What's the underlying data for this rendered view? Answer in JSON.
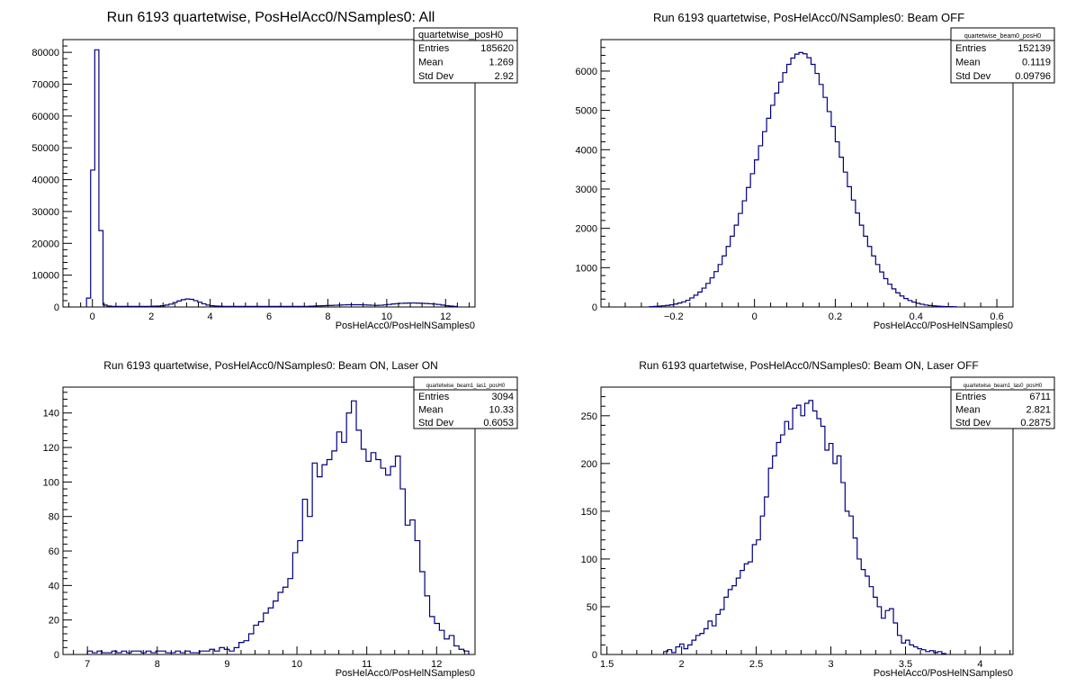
{
  "chart_data": [
    {
      "type": "histogram",
      "title": "Run 6193 quartetwise, PosHelAcc0/NSamples0: All",
      "xlabel": "PosHelAcc0/PosHelNSamples0",
      "ylabel": "",
      "xlim": [
        -1,
        13
      ],
      "ylim": [
        0,
        84000
      ],
      "xticks": [
        0,
        2,
        4,
        6,
        8,
        10,
        12
      ],
      "xtick_labels": [
        "0",
        "2",
        "4",
        "6",
        "8",
        "10",
        "12"
      ],
      "yticks": [
        0,
        10000,
        20000,
        30000,
        40000,
        50000,
        60000,
        70000,
        80000
      ],
      "ytick_labels": [
        "0",
        "10000",
        "20000",
        "30000",
        "40000",
        "50000",
        "60000",
        "70000",
        "80000"
      ],
      "stats": {
        "name": "quartetwise_posH0",
        "rows": [
          {
            "label": "Entries",
            "value": "185620"
          },
          {
            "label": "Mean",
            "value": "1.269"
          },
          {
            "label": "Std Dev",
            "value": "2.92"
          }
        ]
      },
      "bins": {
        "edges_start": -0.2,
        "bin_width": 0.14,
        "values": [
          2800,
          43000,
          80800,
          24000,
          600,
          300,
          200,
          200,
          200,
          200,
          200,
          200,
          200,
          200,
          200,
          200,
          250,
          300,
          400,
          600,
          900,
          1400,
          1900,
          2300,
          2500,
          2400,
          2000,
          1500,
          1000,
          600,
          400,
          300,
          250,
          200,
          200,
          200,
          200,
          200,
          200,
          200,
          200,
          200,
          200,
          200,
          200,
          200,
          200,
          200,
          200,
          200,
          200,
          200,
          200,
          200,
          250,
          300,
          350,
          400,
          450,
          500,
          550,
          600,
          650,
          700,
          700,
          700,
          700,
          650,
          600,
          550,
          500,
          550,
          650,
          800,
          950,
          1050,
          1150,
          1200,
          1250,
          1250,
          1200,
          1150,
          1100,
          1000,
          900,
          800,
          600,
          400,
          300,
          200
        ]
      }
    },
    {
      "type": "histogram",
      "title": "Run 6193 quartetwise, PosHelAcc0/NSamples0: Beam OFF",
      "xlabel": "PosHelAcc0/PosHelNSamples0",
      "ylabel": "",
      "xlim": [
        -0.38,
        0.64
      ],
      "ylim": [
        0,
        6800
      ],
      "xticks": [
        -0.2,
        0,
        0.2,
        0.4,
        0.6
      ],
      "xtick_labels": [
        "−0.2",
        "0",
        "0.2",
        "0.4",
        "0.6"
      ],
      "yticks": [
        0,
        1000,
        2000,
        3000,
        4000,
        5000,
        6000
      ],
      "ytick_labels": [
        "0",
        "1000",
        "2000",
        "3000",
        "4000",
        "5000",
        "6000"
      ],
      "stats": {
        "name": "quartetwise_beam0_posH0",
        "rows": [
          {
            "label": "Entries",
            "value": "152139"
          },
          {
            "label": "Mean",
            "value": "0.1119"
          },
          {
            "label": "Std Dev",
            "value": "0.09796"
          }
        ]
      },
      "bins": {
        "edges_start": -0.26,
        "bin_width": 0.01,
        "values": [
          10,
          15,
          20,
          30,
          40,
          55,
          75,
          100,
          130,
          170,
          230,
          300,
          380,
          480,
          600,
          740,
          900,
          1080,
          1300,
          1540,
          1800,
          2080,
          2380,
          2700,
          3040,
          3390,
          3740,
          4100,
          4460,
          4800,
          5130,
          5440,
          5720,
          5960,
          6170,
          6330,
          6430,
          6470,
          6440,
          6340,
          6170,
          5940,
          5660,
          5330,
          4970,
          4590,
          4200,
          3810,
          3430,
          3060,
          2720,
          2390,
          2080,
          1800,
          1540,
          1300,
          1080,
          890,
          720,
          580,
          460,
          360,
          280,
          215,
          165,
          125,
          95,
          70,
          50,
          38,
          28,
          20,
          15,
          10,
          8,
          5
        ]
      }
    },
    {
      "type": "histogram",
      "title": "Run 6193 quartetwise, PosHelAcc0/NSamples0: Beam ON, Laser ON",
      "xlabel": "PosHelAcc0/PosHelNSamples0",
      "ylabel": "",
      "xlim": [
        6.65,
        12.55
      ],
      "ylim": [
        0,
        155
      ],
      "xticks": [
        7,
        8,
        9,
        10,
        11,
        12
      ],
      "xtick_labels": [
        "7",
        "8",
        "9",
        "10",
        "11",
        "12"
      ],
      "yticks": [
        0,
        20,
        40,
        60,
        80,
        100,
        120,
        140
      ],
      "ytick_labels": [
        "0",
        "20",
        "40",
        "60",
        "80",
        "100",
        "120",
        "140"
      ],
      "stats": {
        "name": "quartetwise_beam1_las1_posH0",
        "rows": [
          {
            "label": "Entries",
            "value": "3094"
          },
          {
            "label": "Mean",
            "value": "10.33"
          },
          {
            "label": "Std Dev",
            "value": "0.6053"
          }
        ]
      },
      "bins": {
        "edges_start": 7.0,
        "bin_width": 0.07,
        "values": [
          2,
          1,
          2,
          1,
          1,
          2,
          1,
          2,
          1,
          2,
          2,
          1,
          2,
          1,
          2,
          2,
          1,
          1,
          2,
          1,
          2,
          1,
          1,
          2,
          2,
          3,
          2,
          4,
          3,
          2,
          4,
          7,
          8,
          12,
          17,
          19,
          24,
          27,
          31,
          36,
          39,
          44,
          59,
          66,
          90,
          80,
          111,
          103,
          110,
          113,
          118,
          129,
          123,
          140,
          147,
          130,
          119,
          112,
          117,
          113,
          108,
          104,
          109,
          115,
          96,
          75,
          78,
          66,
          48,
          34,
          22,
          18,
          14,
          9,
          11,
          5,
          3,
          2
        ]
      }
    },
    {
      "type": "histogram",
      "title": "Run 6193 quartetwise, PosHelAcc0/NSamples0: Beam ON, Laser OFF",
      "xlabel": "PosHelAcc0/PosHelNSamples0",
      "ylabel": "",
      "xlim": [
        1.46,
        4.22
      ],
      "ylim": [
        0,
        280
      ],
      "xticks": [
        1.5,
        2,
        2.5,
        3,
        3.5,
        4
      ],
      "xtick_labels": [
        "1.5",
        "2",
        "2.5",
        "3",
        "3.5",
        "4"
      ],
      "yticks": [
        0,
        50,
        100,
        150,
        200,
        250
      ],
      "ytick_labels": [
        "0",
        "50",
        "100",
        "150",
        "200",
        "250"
      ],
      "stats": {
        "name": "quartetwise_beam1_las0_posH0",
        "rows": [
          {
            "label": "Entries",
            "value": "6711"
          },
          {
            "label": "Mean",
            "value": "2.821"
          },
          {
            "label": "Std Dev",
            "value": "0.2875"
          }
        ]
      },
      "bins": {
        "edges_start": 1.88,
        "bin_width": 0.027,
        "values": [
          3,
          5,
          2,
          8,
          11,
          6,
          10,
          15,
          20,
          22,
          27,
          35,
          30,
          42,
          47,
          60,
          68,
          72,
          80,
          88,
          95,
          97,
          115,
          120,
          145,
          165,
          195,
          208,
          222,
          230,
          244,
          236,
          258,
          261,
          250,
          263,
          266,
          255,
          247,
          239,
          214,
          221,
          200,
          208,
          180,
          150,
          145,
          122,
          100,
          89,
          82,
          71,
          60,
          50,
          38,
          46,
          48,
          33,
          20,
          12,
          15,
          10,
          8,
          6,
          5,
          3,
          4,
          2,
          3,
          1
        ]
      }
    }
  ]
}
